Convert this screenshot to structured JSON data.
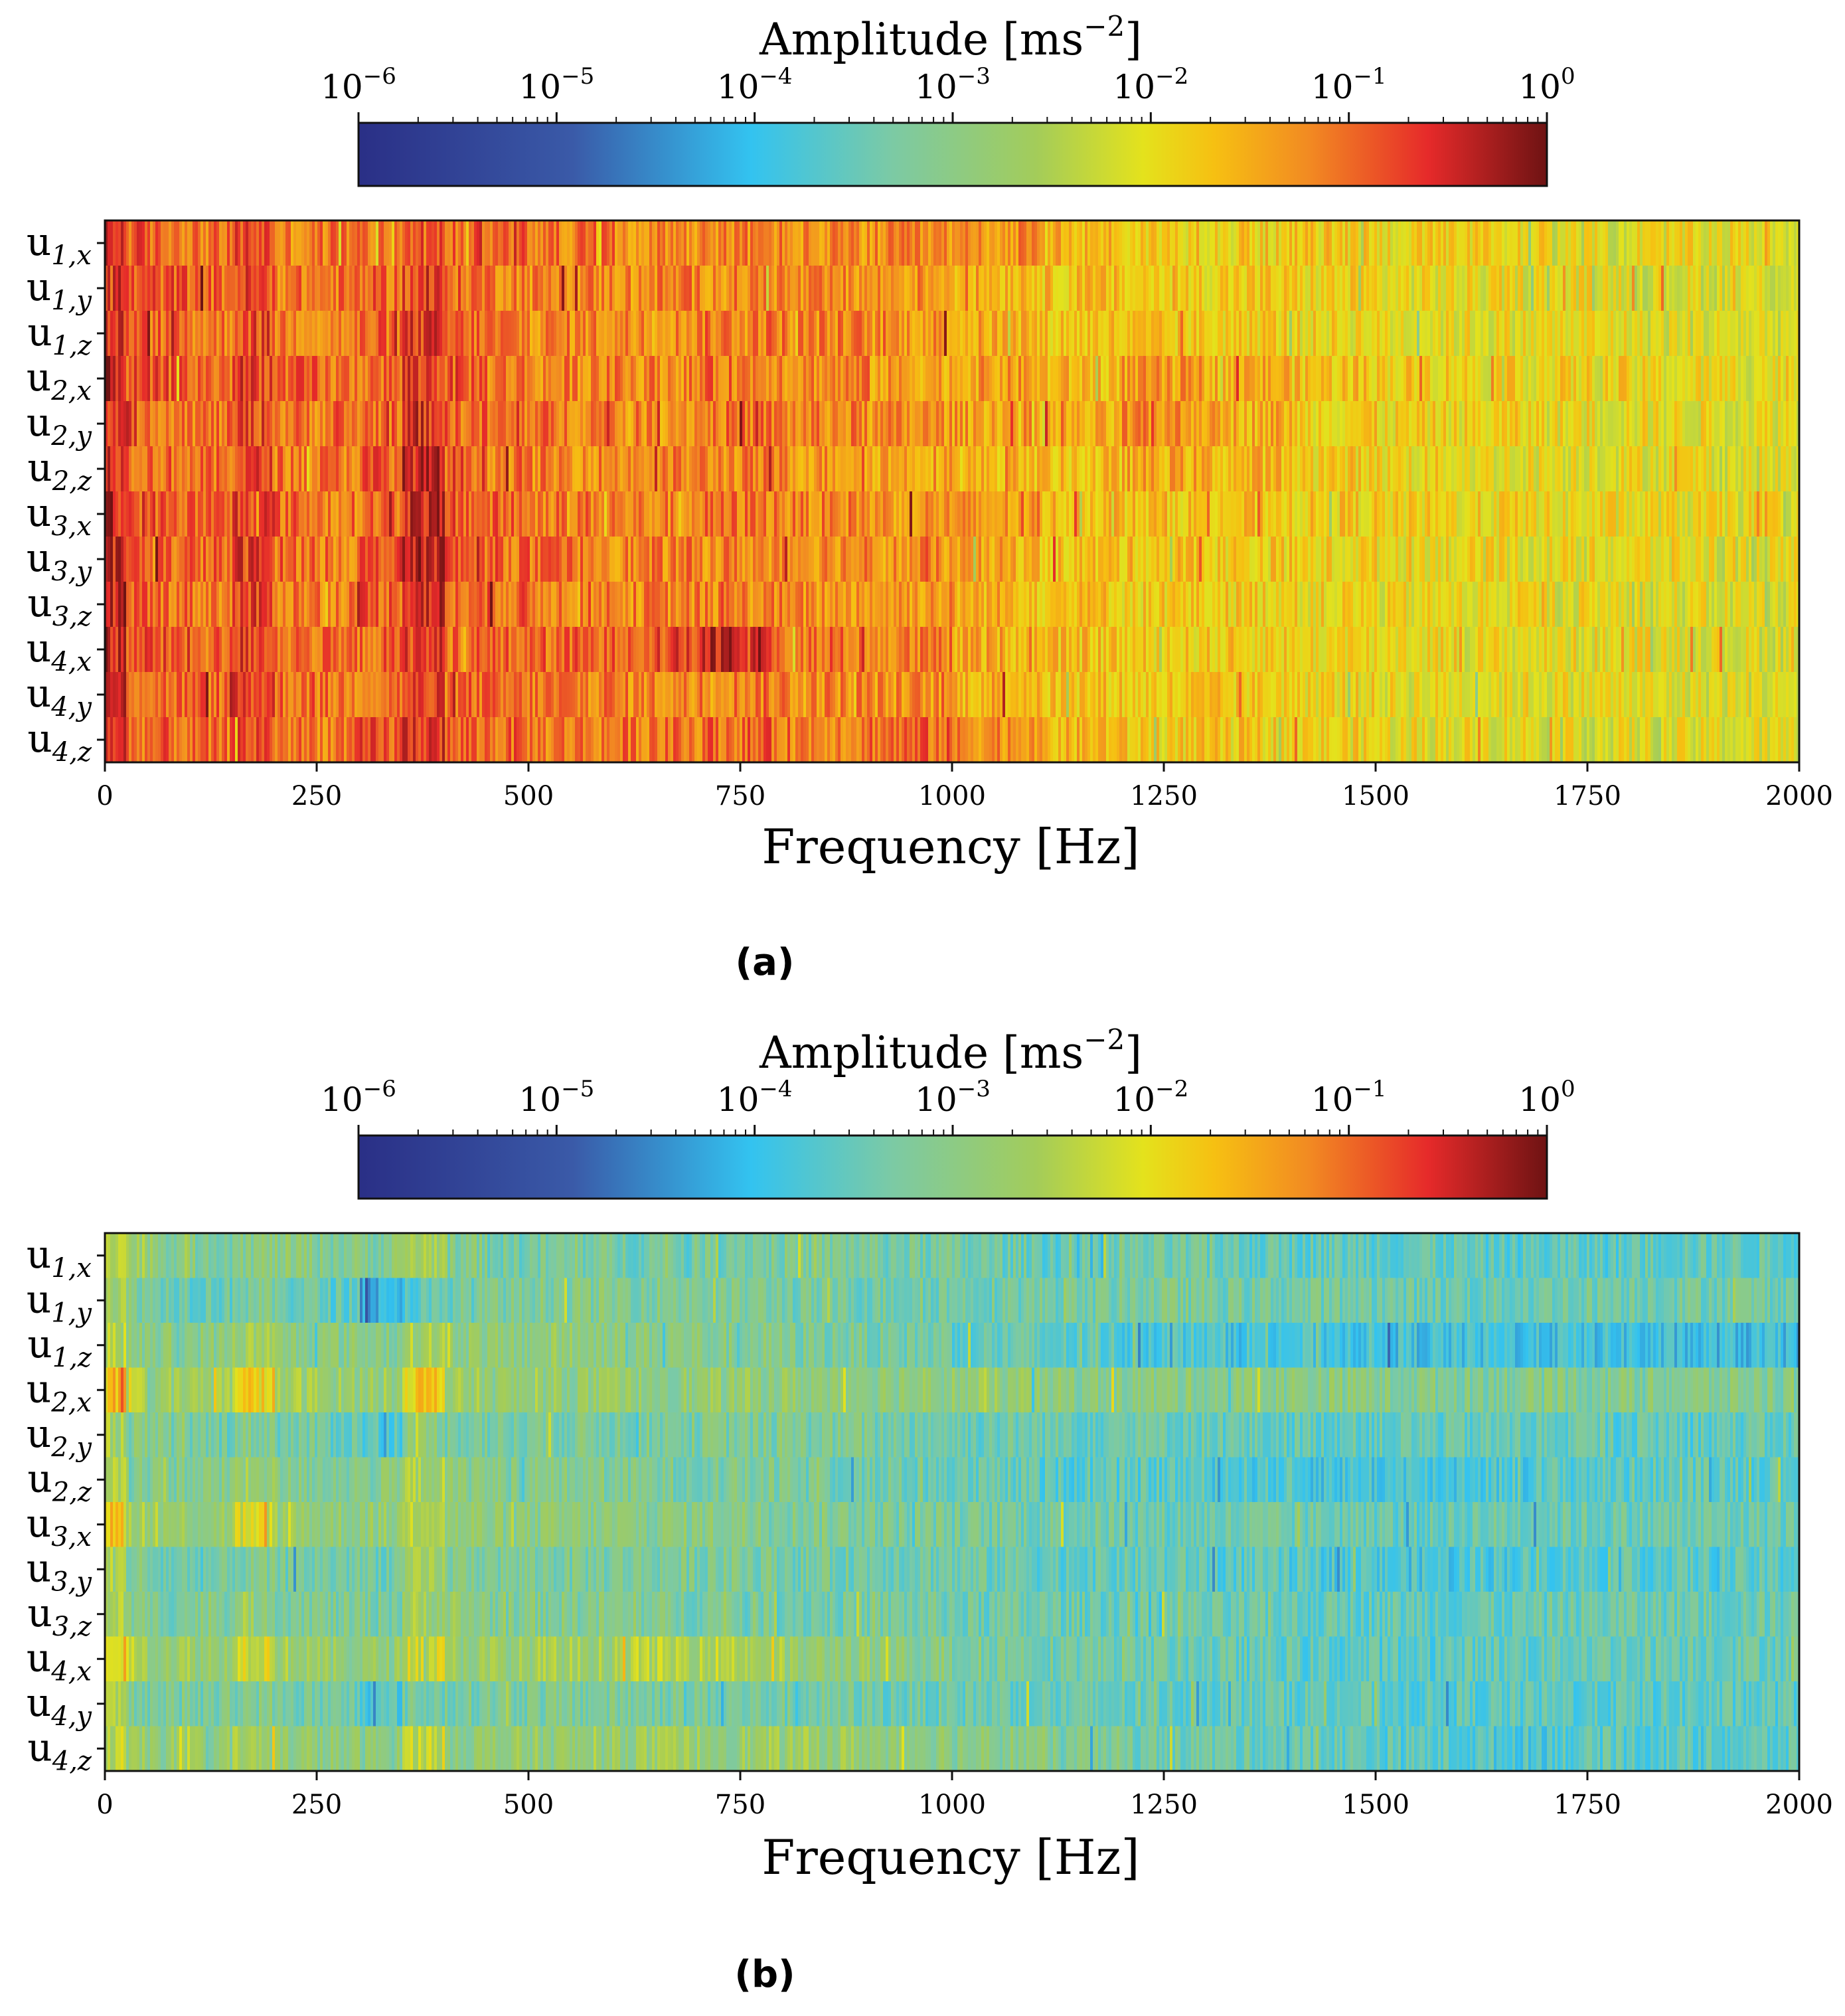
{
  "panels": [
    {
      "id": "a",
      "label": "(a)",
      "colorbar": {
        "label_text": "Amplitude [ms",
        "label_exp": "−2",
        "label_close": "]",
        "ticks": [
          {
            "base": "10",
            "exp": "−6"
          },
          {
            "base": "10",
            "exp": "−5"
          },
          {
            "base": "10",
            "exp": "−4"
          },
          {
            "base": "10",
            "exp": "−3"
          },
          {
            "base": "10",
            "exp": "−2"
          },
          {
            "base": "10",
            "exp": "−1"
          },
          {
            "base": "10",
            "exp": "0"
          }
        ]
      }
    },
    {
      "id": "b",
      "label": "(b)",
      "colorbar": {
        "label_text": "Amplitude [ms",
        "label_exp": "−2",
        "label_close": "]",
        "ticks": [
          {
            "base": "10",
            "exp": "−6"
          },
          {
            "base": "10",
            "exp": "−5"
          },
          {
            "base": "10",
            "exp": "−4"
          },
          {
            "base": "10",
            "exp": "−3"
          },
          {
            "base": "10",
            "exp": "−2"
          },
          {
            "base": "10",
            "exp": "−1"
          },
          {
            "base": "10",
            "exp": "0"
          }
        ]
      }
    }
  ],
  "colormap_stops": [
    {
      "t": 0.0,
      "color": "#2a2f86"
    },
    {
      "t": 0.18,
      "color": "#3a5aa8"
    },
    {
      "t": 0.33,
      "color": "#33c3f0"
    },
    {
      "t": 0.45,
      "color": "#7ccaa4"
    },
    {
      "t": 0.57,
      "color": "#a3cc5a"
    },
    {
      "t": 0.66,
      "color": "#e4e21c"
    },
    {
      "t": 0.72,
      "color": "#f6c012"
    },
    {
      "t": 0.8,
      "color": "#f28a22"
    },
    {
      "t": 0.9,
      "color": "#e62a2a"
    },
    {
      "t": 1.0,
      "color": "#6e1313"
    }
  ],
  "chart_data": [
    {
      "type": "heatmap",
      "panel": "a",
      "title": "",
      "xlabel": "Frequency [Hz]",
      "ylabel": "",
      "xlim": [
        0,
        2000
      ],
      "xticks": [
        "0",
        "250",
        "500",
        "750",
        "1000",
        "1250",
        "1500",
        "1750",
        "2000"
      ],
      "rows": [
        {
          "base": "u",
          "sub": "1,x"
        },
        {
          "base": "u",
          "sub": "1,y"
        },
        {
          "base": "u",
          "sub": "1,z"
        },
        {
          "base": "u",
          "sub": "2,x"
        },
        {
          "base": "u",
          "sub": "2,y"
        },
        {
          "base": "u",
          "sub": "2,z"
        },
        {
          "base": "u",
          "sub": "3,x"
        },
        {
          "base": "u",
          "sub": "3,y"
        },
        {
          "base": "u",
          "sub": "3,z"
        },
        {
          "base": "u",
          "sub": "4,x"
        },
        {
          "base": "u",
          "sub": "4,y"
        },
        {
          "base": "u",
          "sub": "4,z"
        }
      ],
      "colorbar_range_log10": [
        -6,
        0
      ],
      "frequency_bands_hz": [
        0,
        25,
        50,
        100,
        150,
        200,
        250,
        300,
        350,
        400,
        450,
        500,
        600,
        700,
        750,
        800,
        900,
        1000,
        1100,
        1200,
        1300,
        1400,
        1500,
        1600,
        1700,
        1800,
        1900,
        2000
      ],
      "band_log10_amplitude": [
        [
          -0.6,
          -0.9,
          -1.0,
          -1.1,
          -0.8,
          -1.2,
          -1.1,
          -1.1,
          -0.9,
          -1.0,
          -1.0,
          -1.1,
          -1.2,
          -1.2,
          -1.2,
          -1.3,
          -1.3,
          -1.3,
          -1.6,
          -1.8,
          -1.8,
          -1.8,
          -1.9,
          -1.9,
          -2.1,
          -2.0,
          -2.0
        ],
        [
          -0.5,
          -0.9,
          -0.9,
          -1.0,
          -0.8,
          -1.1,
          -1.1,
          -1.0,
          -0.8,
          -1.0,
          -1.1,
          -1.2,
          -1.2,
          -1.2,
          -1.2,
          -1.3,
          -1.3,
          -1.5,
          -1.7,
          -1.8,
          -1.8,
          -1.9,
          -2.0,
          -2.0,
          -2.0,
          -2.1,
          -2.1
        ],
        [
          -0.6,
          -1.0,
          -1.0,
          -1.1,
          -0.8,
          -1.1,
          -1.2,
          -1.0,
          -0.7,
          -1.0,
          -1.1,
          -1.2,
          -1.2,
          -1.1,
          -1.1,
          -1.2,
          -1.3,
          -1.5,
          -1.7,
          -1.8,
          -1.8,
          -1.9,
          -2.0,
          -2.0,
          -2.0,
          -2.1,
          -2.1
        ],
        [
          -0.4,
          -0.9,
          -0.9,
          -1.0,
          -0.7,
          -1.0,
          -1.1,
          -1.0,
          -0.7,
          -0.9,
          -1.1,
          -1.2,
          -1.2,
          -1.1,
          -1.1,
          -1.2,
          -1.4,
          -1.4,
          -1.6,
          -1.4,
          -1.5,
          -1.7,
          -1.8,
          -1.9,
          -1.9,
          -2.0,
          -2.0
        ],
        [
          -0.5,
          -0.9,
          -1.0,
          -1.1,
          -0.8,
          -1.1,
          -1.1,
          -1.0,
          -0.6,
          -1.0,
          -1.1,
          -1.1,
          -1.2,
          -1.1,
          -1.1,
          -1.2,
          -1.3,
          -1.4,
          -1.6,
          -1.3,
          -1.5,
          -1.8,
          -1.9,
          -1.9,
          -2.0,
          -2.0,
          -2.0
        ],
        [
          -0.5,
          -0.9,
          -1.0,
          -1.1,
          -0.8,
          -1.1,
          -1.1,
          -0.9,
          -0.5,
          -0.9,
          -1.1,
          -1.2,
          -1.2,
          -1.2,
          -1.2,
          -1.3,
          -1.4,
          -1.6,
          -1.7,
          -1.5,
          -1.6,
          -1.8,
          -1.9,
          -2.0,
          -2.0,
          -2.0,
          -2.1
        ],
        [
          -0.5,
          -0.8,
          -0.9,
          -1.0,
          -0.7,
          -1.0,
          -1.1,
          -1.0,
          -0.5,
          -0.9,
          -1.0,
          -1.1,
          -1.2,
          -1.1,
          -1.1,
          -1.2,
          -1.3,
          -1.4,
          -1.6,
          -1.7,
          -1.7,
          -1.8,
          -1.9,
          -1.9,
          -2.0,
          -2.0,
          -2.0
        ],
        [
          -0.5,
          -0.9,
          -1.0,
          -1.0,
          -0.7,
          -1.0,
          -1.1,
          -0.9,
          -0.4,
          -0.9,
          -1.0,
          -1.1,
          -1.2,
          -1.2,
          -1.2,
          -1.2,
          -1.3,
          -1.5,
          -1.7,
          -1.7,
          -1.8,
          -1.9,
          -1.9,
          -2.0,
          -2.0,
          -2.0,
          -2.1
        ],
        [
          -0.5,
          -0.9,
          -1.0,
          -1.1,
          -0.8,
          -1.1,
          -1.1,
          -0.9,
          -0.5,
          -1.0,
          -1.0,
          -1.1,
          -1.2,
          -1.2,
          -1.2,
          -1.3,
          -1.3,
          -1.5,
          -1.7,
          -1.8,
          -1.8,
          -1.9,
          -2.0,
          -2.0,
          -2.0,
          -2.1,
          -2.1
        ],
        [
          -0.5,
          -0.8,
          -0.9,
          -1.0,
          -0.7,
          -1.0,
          -1.1,
          -1.0,
          -0.7,
          -1.0,
          -1.0,
          -1.0,
          -0.8,
          -0.5,
          -0.7,
          -1.1,
          -1.2,
          -1.5,
          -1.7,
          -1.8,
          -1.8,
          -1.9,
          -1.9,
          -2.0,
          -2.0,
          -2.0,
          -2.1
        ],
        [
          -0.5,
          -0.9,
          -1.0,
          -1.0,
          -0.7,
          -1.0,
          -1.1,
          -1.0,
          -0.8,
          -1.0,
          -1.1,
          -1.1,
          -1.2,
          -1.1,
          -1.1,
          -1.2,
          -1.3,
          -1.5,
          -1.7,
          -1.8,
          -1.8,
          -1.9,
          -2.0,
          -2.0,
          -2.0,
          -2.1,
          -2.1
        ],
        [
          -0.6,
          -1.0,
          -1.0,
          -1.1,
          -0.8,
          -1.1,
          -1.1,
          -0.9,
          -0.6,
          -1.0,
          -1.0,
          -1.1,
          -1.1,
          -1.0,
          -1.0,
          -1.1,
          -1.0,
          -1.2,
          -1.6,
          -1.8,
          -1.8,
          -1.9,
          -2.0,
          -2.0,
          -2.1,
          -2.1,
          -2.1
        ]
      ]
    },
    {
      "type": "heatmap",
      "panel": "b",
      "title": "",
      "xlabel": "Frequency [Hz]",
      "ylabel": "",
      "xlim": [
        0,
        2000
      ],
      "xticks": [
        "0",
        "250",
        "500",
        "750",
        "1000",
        "1250",
        "1500",
        "1750",
        "2000"
      ],
      "rows": [
        {
          "base": "u",
          "sub": "1,x"
        },
        {
          "base": "u",
          "sub": "1,y"
        },
        {
          "base": "u",
          "sub": "1,z"
        },
        {
          "base": "u",
          "sub": "2,x"
        },
        {
          "base": "u",
          "sub": "2,y"
        },
        {
          "base": "u",
          "sub": "2,z"
        },
        {
          "base": "u",
          "sub": "3,x"
        },
        {
          "base": "u",
          "sub": "3,y"
        },
        {
          "base": "u",
          "sub": "3,z"
        },
        {
          "base": "u",
          "sub": "4,x"
        },
        {
          "base": "u",
          "sub": "4,y"
        },
        {
          "base": "u",
          "sub": "4,z"
        }
      ],
      "colorbar_range_log10": [
        -6,
        0
      ],
      "frequency_bands_hz": [
        0,
        25,
        50,
        100,
        150,
        200,
        250,
        300,
        350,
        400,
        450,
        500,
        600,
        700,
        750,
        800,
        900,
        1000,
        1100,
        1200,
        1300,
        1400,
        1500,
        1600,
        1700,
        1800,
        1900,
        2000
      ],
      "band_log10_amplitude": [
        [
          -2.2,
          -2.7,
          -3.0,
          -3.1,
          -3.0,
          -3.0,
          -3.1,
          -3.1,
          -2.6,
          -3.1,
          -3.3,
          -3.3,
          -3.3,
          -3.2,
          -3.2,
          -3.2,
          -3.3,
          -3.4,
          -3.5,
          -3.4,
          -3.5,
          -3.5,
          -3.5,
          -3.6,
          -3.6,
          -3.5,
          -3.5
        ],
        [
          -2.6,
          -3.1,
          -3.3,
          -3.4,
          -3.2,
          -3.4,
          -3.5,
          -4.2,
          -3.6,
          -3.3,
          -3.2,
          -3.1,
          -3.1,
          -3.2,
          -3.2,
          -3.3,
          -3.3,
          -3.3,
          -3.3,
          -3.2,
          -3.3,
          -3.3,
          -3.4,
          -3.4,
          -3.3,
          -3.3,
          -3.3
        ],
        [
          -2.5,
          -3.0,
          -3.1,
          -3.0,
          -2.7,
          -3.0,
          -3.0,
          -3.0,
          -2.6,
          -2.9,
          -3.0,
          -2.9,
          -3.0,
          -3.1,
          -3.1,
          -3.2,
          -3.3,
          -3.5,
          -3.6,
          -3.7,
          -3.8,
          -3.8,
          -3.9,
          -3.9,
          -3.9,
          -4.0,
          -4.0
        ],
        [
          -1.7,
          -2.6,
          -2.8,
          -2.7,
          -1.9,
          -2.7,
          -2.8,
          -2.8,
          -1.8,
          -2.8,
          -2.9,
          -2.9,
          -2.9,
          -2.9,
          -2.9,
          -2.9,
          -2.9,
          -2.9,
          -3.0,
          -3.0,
          -3.0,
          -3.0,
          -3.1,
          -3.1,
          -3.1,
          -3.1,
          -3.1
        ],
        [
          -2.6,
          -3.1,
          -3.2,
          -3.3,
          -3.1,
          -3.3,
          -3.4,
          -3.6,
          -3.0,
          -3.2,
          -3.3,
          -3.2,
          -3.2,
          -3.2,
          -3.2,
          -3.2,
          -3.3,
          -3.4,
          -3.4,
          -3.4,
          -3.5,
          -3.5,
          -3.5,
          -3.5,
          -3.5,
          -3.5,
          -3.5
        ],
        [
          -2.5,
          -3.0,
          -3.1,
          -3.1,
          -2.8,
          -3.1,
          -3.1,
          -3.1,
          -2.6,
          -3.0,
          -3.1,
          -3.1,
          -3.2,
          -3.2,
          -3.2,
          -3.3,
          -3.4,
          -3.5,
          -3.6,
          -3.6,
          -3.7,
          -3.8,
          -3.8,
          -3.7,
          -3.6,
          -3.5,
          -3.5
        ],
        [
          -1.8,
          -2.6,
          -2.8,
          -2.8,
          -2.2,
          -2.8,
          -2.9,
          -2.9,
          -2.3,
          -2.9,
          -3.0,
          -3.0,
          -3.0,
          -3.0,
          -3.0,
          -3.1,
          -3.2,
          -3.3,
          -3.3,
          -3.4,
          -3.4,
          -3.4,
          -3.5,
          -3.4,
          -3.4,
          -3.4,
          -3.4
        ],
        [
          -2.6,
          -3.1,
          -3.4,
          -3.4,
          -3.2,
          -3.3,
          -3.3,
          -3.3,
          -2.8,
          -3.1,
          -3.2,
          -3.2,
          -3.2,
          -3.2,
          -3.2,
          -3.3,
          -3.3,
          -3.4,
          -3.5,
          -3.5,
          -3.6,
          -3.7,
          -3.8,
          -3.7,
          -3.6,
          -3.6,
          -3.6
        ],
        [
          -2.6,
          -3.1,
          -3.2,
          -3.1,
          -2.9,
          -3.1,
          -3.2,
          -3.2,
          -2.7,
          -3.0,
          -3.1,
          -3.1,
          -3.2,
          -3.2,
          -3.2,
          -3.3,
          -3.3,
          -3.4,
          -3.4,
          -3.4,
          -3.5,
          -3.5,
          -3.5,
          -3.5,
          -3.4,
          -3.4,
          -3.4
        ],
        [
          -1.8,
          -2.4,
          -2.7,
          -2.8,
          -2.1,
          -2.7,
          -2.9,
          -2.9,
          -2.2,
          -2.8,
          -2.8,
          -2.7,
          -2.5,
          -2.4,
          -2.6,
          -2.9,
          -3.0,
          -3.2,
          -3.3,
          -3.4,
          -3.5,
          -3.6,
          -3.6,
          -3.5,
          -3.4,
          -3.4,
          -3.4
        ],
        [
          -2.6,
          -3.1,
          -3.2,
          -3.3,
          -3.1,
          -3.3,
          -3.4,
          -3.7,
          -3.3,
          -3.2,
          -3.2,
          -3.2,
          -3.2,
          -3.3,
          -3.3,
          -3.3,
          -3.4,
          -3.4,
          -3.5,
          -3.5,
          -3.5,
          -3.5,
          -3.6,
          -3.6,
          -3.6,
          -3.6,
          -3.6
        ],
        [
          -2.4,
          -2.9,
          -2.9,
          -2.9,
          -2.7,
          -2.9,
          -3.0,
          -3.0,
          -2.3,
          -2.9,
          -2.9,
          -2.9,
          -2.8,
          -2.8,
          -2.8,
          -2.8,
          -2.9,
          -3.0,
          -3.2,
          -3.3,
          -3.4,
          -3.5,
          -3.6,
          -3.7,
          -3.6,
          -3.6,
          -3.6
        ]
      ]
    }
  ]
}
